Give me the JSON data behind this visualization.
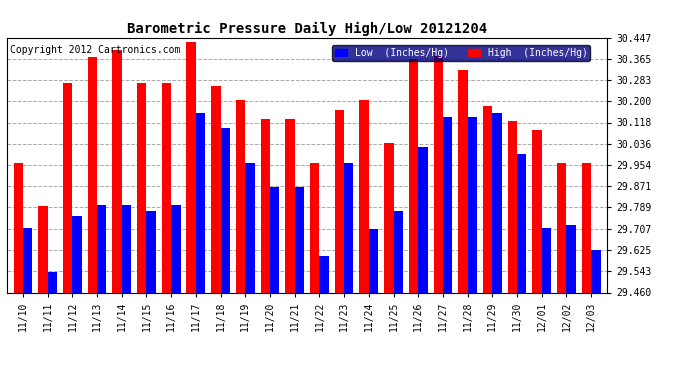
{
  "title": "Barometric Pressure Daily High/Low 20121204",
  "copyright": "Copyright 2012 Cartronics.com",
  "ylabel_low": "Low  (Inches/Hg)",
  "ylabel_high": "High  (Inches/Hg)",
  "ymin": 29.46,
  "ymax": 30.447,
  "yticks": [
    29.46,
    29.543,
    29.625,
    29.707,
    29.789,
    29.871,
    29.954,
    30.036,
    30.118,
    30.2,
    30.283,
    30.365,
    30.447
  ],
  "dates": [
    "11/10",
    "11/11",
    "11/12",
    "11/13",
    "11/14",
    "11/15",
    "11/16",
    "11/17",
    "11/18",
    "11/19",
    "11/20",
    "11/21",
    "11/22",
    "11/23",
    "11/24",
    "11/25",
    "11/26",
    "11/27",
    "11/28",
    "11/29",
    "11/30",
    "12/01",
    "12/02",
    "12/03"
  ],
  "low": [
    29.71,
    29.54,
    29.755,
    29.8,
    29.8,
    29.775,
    29.8,
    30.155,
    30.095,
    29.96,
    29.87,
    29.87,
    29.6,
    29.96,
    29.705,
    29.775,
    30.025,
    30.14,
    30.14,
    30.155,
    29.995,
    29.71,
    29.72,
    29.625
  ],
  "high": [
    29.96,
    29.795,
    30.27,
    30.37,
    30.4,
    30.27,
    30.27,
    30.43,
    30.26,
    30.205,
    30.13,
    30.13,
    29.96,
    30.165,
    30.205,
    30.04,
    30.365,
    30.375,
    30.32,
    30.18,
    30.125,
    30.09,
    29.96,
    29.96
  ],
  "low_color": "#0000FF",
  "high_color": "#FF0000",
  "background_color": "#FFFFFF",
  "grid_color": "#AAAAAA",
  "bar_width": 0.38,
  "title_fontsize": 10,
  "tick_fontsize": 7,
  "legend_fontsize": 7,
  "copyright_fontsize": 7
}
